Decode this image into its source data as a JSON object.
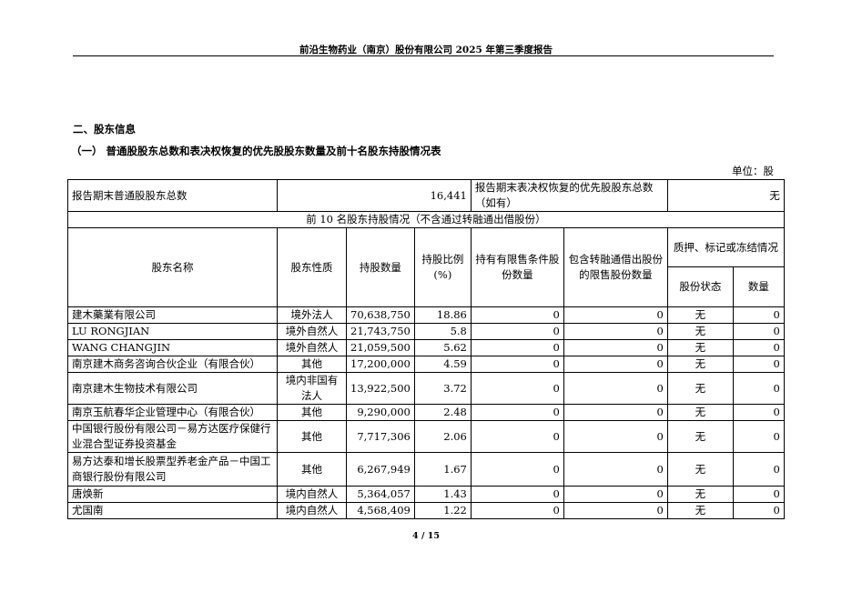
{
  "header": {
    "title": "前沿生物药业（南京）股份有限公司 2025 年第三季度报告"
  },
  "section": {
    "title": "二、股东信息",
    "subtitle": "（一） 普通股股东总数和表决权恢复的优先股股东数量及前十名股东持股情况表",
    "unit": "单位：股"
  },
  "summary": {
    "label1": "报告期末普通股股东总数",
    "value1": "16,441",
    "label2": "报告期末表决权恢复的优先股股东总数（如有）",
    "value2": "无"
  },
  "table": {
    "caption": "前 10 名股东持股情况（不含通过转融通出借股份）",
    "headers": {
      "name": "股东名称",
      "nature": "股东性质",
      "shares": "持股数量",
      "ratio": "持股比例(%)",
      "restricted": "持有有限售条件股份数量",
      "lent": "包含转融通借出股份的限售股份数量",
      "pledge": "质押、标记或冻结情况",
      "pledge_status": "股份状态",
      "pledge_qty": "数量"
    },
    "rows": [
      {
        "name": "建木藥業有限公司",
        "nature": "境外法人",
        "shares": "70,638,750",
        "ratio": "18.86",
        "restricted": "0",
        "lent": "0",
        "status": "无",
        "qty": "0"
      },
      {
        "name": "LU RONGJIAN",
        "nature": "境外自然人",
        "shares": "21,743,750",
        "ratio": "5.8",
        "restricted": "0",
        "lent": "0",
        "status": "无",
        "qty": "0"
      },
      {
        "name": "WANG CHANGJIN",
        "nature": "境外自然人",
        "shares": "21,059,500",
        "ratio": "5.62",
        "restricted": "0",
        "lent": "0",
        "status": "无",
        "qty": "0"
      },
      {
        "name": "南京建木商务咨询合伙企业（有限合伙）",
        "nature": "其他",
        "shares": "17,200,000",
        "ratio": "4.59",
        "restricted": "0",
        "lent": "0",
        "status": "无",
        "qty": "0"
      },
      {
        "name": "南京建木生物技术有限公司",
        "nature": "境内非国有法人",
        "shares": "13,922,500",
        "ratio": "3.72",
        "restricted": "0",
        "lent": "0",
        "status": "无",
        "qty": "0"
      },
      {
        "name": "南京玉航春华企业管理中心（有限合伙）",
        "nature": "其他",
        "shares": "9,290,000",
        "ratio": "2.48",
        "restricted": "0",
        "lent": "0",
        "status": "无",
        "qty": "0"
      },
      {
        "name": "中国银行股份有限公司－易方达医疗保健行业混合型证券投资基金",
        "nature": "其他",
        "shares": "7,717,306",
        "ratio": "2.06",
        "restricted": "0",
        "lent": "0",
        "status": "无",
        "qty": "0"
      },
      {
        "name": "易方达泰和增长股票型养老金产品－中国工商银行股份有限公司",
        "nature": "其他",
        "shares": "6,267,949",
        "ratio": "1.67",
        "restricted": "0",
        "lent": "0",
        "status": "无",
        "qty": "0"
      },
      {
        "name": "唐焕新",
        "nature": "境内自然人",
        "shares": "5,364,057",
        "ratio": "1.43",
        "restricted": "0",
        "lent": "0",
        "status": "无",
        "qty": "0"
      },
      {
        "name": "尤国南",
        "nature": "境内自然人",
        "shares": "4,568,409",
        "ratio": "1.22",
        "restricted": "0",
        "lent": "0",
        "status": "无",
        "qty": "0"
      }
    ]
  },
  "footer": {
    "page": "4 / 15"
  }
}
